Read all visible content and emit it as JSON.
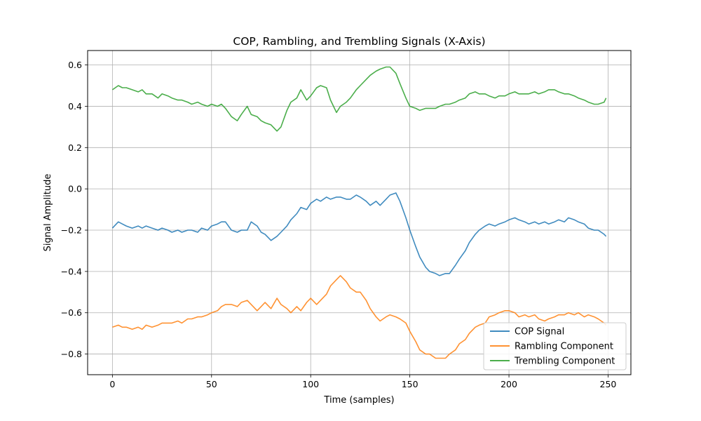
{
  "chart_data": {
    "type": "line",
    "title": "COP, Rambling, and Trembling Signals (X-Axis)",
    "xlabel": "Time (samples)",
    "ylabel": "Signal Amplitude",
    "xlim": [
      -12.5,
      261.5
    ],
    "ylim": [
      -0.9,
      0.67
    ],
    "x_ticks": [
      0,
      50,
      100,
      150,
      200,
      250
    ],
    "y_ticks": [
      -0.8,
      -0.6,
      -0.4,
      -0.2,
      0.0,
      0.2,
      0.4,
      0.6
    ],
    "x_tick_labels": [
      "0",
      "50",
      "100",
      "150",
      "200",
      "250"
    ],
    "y_tick_labels": [
      "−0.8",
      "−0.6",
      "−0.4",
      "−0.2",
      "0.0",
      "0.2",
      "0.4",
      "0.6"
    ],
    "grid": true,
    "legend_position": "lower-right",
    "series": [
      {
        "name": "COP Signal",
        "color": "#1f77b4",
        "x": [
          0,
          3,
          5,
          7,
          10,
          13,
          15,
          17,
          20,
          23,
          25,
          28,
          30,
          33,
          35,
          38,
          40,
          43,
          45,
          48,
          50,
          53,
          55,
          57,
          60,
          63,
          65,
          68,
          70,
          73,
          75,
          77,
          80,
          83,
          85,
          88,
          90,
          93,
          95,
          98,
          100,
          103,
          105,
          108,
          110,
          113,
          115,
          118,
          120,
          123,
          125,
          128,
          130,
          133,
          135,
          138,
          140,
          143,
          145,
          148,
          150,
          153,
          155,
          158,
          160,
          163,
          165,
          168,
          170,
          173,
          175,
          178,
          180,
          183,
          185,
          188,
          190,
          193,
          195,
          198,
          200,
          203,
          205,
          208,
          210,
          213,
          215,
          218,
          220,
          223,
          225,
          228,
          230,
          233,
          235,
          238,
          240,
          243,
          245,
          248,
          249
        ],
        "y": [
          -0.19,
          -0.16,
          -0.17,
          -0.18,
          -0.19,
          -0.18,
          -0.19,
          -0.18,
          -0.19,
          -0.2,
          -0.19,
          -0.2,
          -0.21,
          -0.2,
          -0.21,
          -0.2,
          -0.2,
          -0.21,
          -0.19,
          -0.2,
          -0.18,
          -0.17,
          -0.16,
          -0.16,
          -0.2,
          -0.21,
          -0.2,
          -0.2,
          -0.16,
          -0.18,
          -0.21,
          -0.22,
          -0.25,
          -0.23,
          -0.21,
          -0.18,
          -0.15,
          -0.12,
          -0.09,
          -0.1,
          -0.07,
          -0.05,
          -0.06,
          -0.04,
          -0.05,
          -0.04,
          -0.04,
          -0.05,
          -0.05,
          -0.03,
          -0.04,
          -0.06,
          -0.08,
          -0.06,
          -0.08,
          -0.05,
          -0.03,
          -0.02,
          -0.06,
          -0.14,
          -0.2,
          -0.28,
          -0.33,
          -0.38,
          -0.4,
          -0.41,
          -0.42,
          -0.41,
          -0.41,
          -0.37,
          -0.34,
          -0.3,
          -0.26,
          -0.22,
          -0.2,
          -0.18,
          -0.17,
          -0.18,
          -0.17,
          -0.16,
          -0.15,
          -0.14,
          -0.15,
          -0.16,
          -0.17,
          -0.16,
          -0.17,
          -0.16,
          -0.17,
          -0.16,
          -0.15,
          -0.16,
          -0.14,
          -0.15,
          -0.16,
          -0.17,
          -0.19,
          -0.2,
          -0.2,
          -0.22,
          -0.23
        ]
      },
      {
        "name": "Rambling Component",
        "color": "#ff7f0e",
        "x": [
          0,
          3,
          5,
          7,
          10,
          13,
          15,
          17,
          20,
          23,
          25,
          28,
          30,
          33,
          35,
          38,
          40,
          43,
          45,
          48,
          50,
          53,
          55,
          57,
          60,
          63,
          65,
          68,
          70,
          73,
          75,
          77,
          80,
          83,
          85,
          88,
          90,
          93,
          95,
          98,
          100,
          103,
          105,
          108,
          110,
          113,
          115,
          118,
          120,
          123,
          125,
          128,
          130,
          133,
          135,
          138,
          140,
          143,
          145,
          148,
          150,
          153,
          155,
          158,
          160,
          163,
          165,
          168,
          170,
          173,
          175,
          178,
          180,
          183,
          185,
          188,
          190,
          193,
          195,
          198,
          200,
          203,
          205,
          208,
          210,
          213,
          215,
          218,
          220,
          223,
          225,
          228,
          230,
          233,
          235,
          238,
          240,
          243,
          245,
          248,
          249
        ],
        "y": [
          -0.67,
          -0.66,
          -0.67,
          -0.67,
          -0.68,
          -0.67,
          -0.68,
          -0.66,
          -0.67,
          -0.66,
          -0.65,
          -0.65,
          -0.65,
          -0.64,
          -0.65,
          -0.63,
          -0.63,
          -0.62,
          -0.62,
          -0.61,
          -0.6,
          -0.59,
          -0.57,
          -0.56,
          -0.56,
          -0.57,
          -0.55,
          -0.54,
          -0.56,
          -0.59,
          -0.57,
          -0.55,
          -0.58,
          -0.53,
          -0.56,
          -0.58,
          -0.6,
          -0.57,
          -0.59,
          -0.55,
          -0.53,
          -0.56,
          -0.54,
          -0.51,
          -0.47,
          -0.44,
          -0.42,
          -0.45,
          -0.48,
          -0.5,
          -0.5,
          -0.54,
          -0.58,
          -0.62,
          -0.64,
          -0.62,
          -0.61,
          -0.62,
          -0.63,
          -0.65,
          -0.69,
          -0.74,
          -0.78,
          -0.8,
          -0.8,
          -0.82,
          -0.82,
          -0.82,
          -0.8,
          -0.78,
          -0.75,
          -0.73,
          -0.7,
          -0.67,
          -0.66,
          -0.65,
          -0.62,
          -0.61,
          -0.6,
          -0.59,
          -0.59,
          -0.6,
          -0.62,
          -0.61,
          -0.62,
          -0.61,
          -0.63,
          -0.64,
          -0.63,
          -0.62,
          -0.61,
          -0.61,
          -0.6,
          -0.61,
          -0.6,
          -0.62,
          -0.61,
          -0.62,
          -0.63,
          -0.65,
          -0.66
        ]
      },
      {
        "name": "Trembling Component",
        "color": "#2ca02c",
        "x": [
          0,
          3,
          5,
          7,
          10,
          13,
          15,
          17,
          20,
          23,
          25,
          28,
          30,
          33,
          35,
          38,
          40,
          43,
          45,
          48,
          50,
          53,
          55,
          57,
          60,
          63,
          65,
          68,
          70,
          73,
          75,
          77,
          80,
          83,
          85,
          88,
          90,
          93,
          95,
          98,
          100,
          103,
          105,
          108,
          110,
          113,
          115,
          118,
          120,
          123,
          125,
          128,
          130,
          133,
          135,
          138,
          140,
          143,
          145,
          148,
          150,
          153,
          155,
          158,
          160,
          163,
          165,
          168,
          170,
          173,
          175,
          178,
          180,
          183,
          185,
          188,
          190,
          193,
          195,
          198,
          200,
          203,
          205,
          208,
          210,
          213,
          215,
          218,
          220,
          223,
          225,
          228,
          230,
          233,
          235,
          238,
          240,
          243,
          245,
          248,
          249
        ],
        "y": [
          0.48,
          0.5,
          0.49,
          0.49,
          0.48,
          0.47,
          0.48,
          0.46,
          0.46,
          0.44,
          0.46,
          0.45,
          0.44,
          0.43,
          0.43,
          0.42,
          0.41,
          0.42,
          0.41,
          0.4,
          0.41,
          0.4,
          0.41,
          0.39,
          0.35,
          0.33,
          0.36,
          0.4,
          0.36,
          0.35,
          0.33,
          0.32,
          0.31,
          0.28,
          0.3,
          0.38,
          0.42,
          0.44,
          0.48,
          0.43,
          0.45,
          0.49,
          0.5,
          0.49,
          0.43,
          0.37,
          0.4,
          0.42,
          0.44,
          0.48,
          0.5,
          0.53,
          0.55,
          0.57,
          0.58,
          0.59,
          0.59,
          0.56,
          0.51,
          0.44,
          0.4,
          0.39,
          0.38,
          0.39,
          0.39,
          0.39,
          0.4,
          0.41,
          0.41,
          0.42,
          0.43,
          0.44,
          0.46,
          0.47,
          0.46,
          0.46,
          0.45,
          0.44,
          0.45,
          0.45,
          0.46,
          0.47,
          0.46,
          0.46,
          0.46,
          0.47,
          0.46,
          0.47,
          0.48,
          0.48,
          0.47,
          0.46,
          0.46,
          0.45,
          0.44,
          0.43,
          0.42,
          0.41,
          0.41,
          0.42,
          0.44
        ]
      }
    ]
  }
}
